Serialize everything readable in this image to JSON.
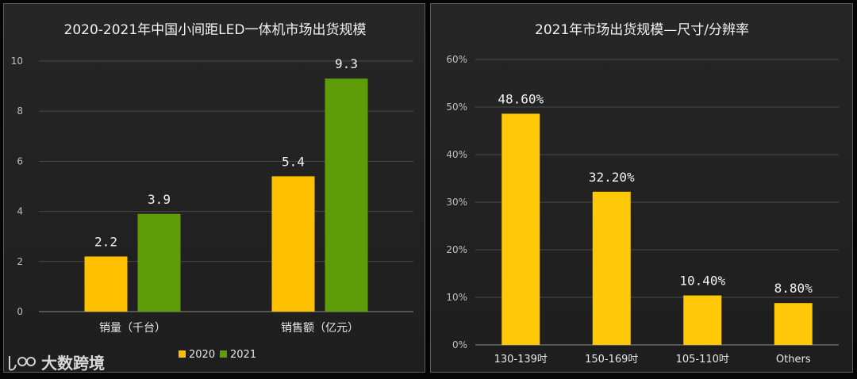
{
  "watermark": {
    "brand_text": "大数跨境"
  },
  "colors": {
    "series_2020": "#FFC000",
    "series_2021": "#5E9C0A",
    "bar_right": "#FFC909"
  },
  "chart_data": [
    {
      "type": "bar",
      "title": "2020-2021年中国小间距LED一体机市场出货规模",
      "categories": [
        "销量（千台）",
        "销售额（亿元）"
      ],
      "series": [
        {
          "name": "2020",
          "values": [
            2.2,
            5.4
          ],
          "labels": [
            "2.2",
            "5.4"
          ]
        },
        {
          "name": "2021",
          "values": [
            3.9,
            9.3
          ],
          "labels": [
            "3.9",
            "9.3"
          ]
        }
      ],
      "ylim": [
        0,
        10
      ],
      "yticks": [
        0,
        2,
        4,
        6,
        8,
        10
      ],
      "ytick_labels": [
        "0",
        "2",
        "4",
        "6",
        "8",
        "10"
      ],
      "grid": true,
      "legend": "bottom"
    },
    {
      "type": "bar",
      "title": "2021年市场出货规模—尺寸/分辨率",
      "categories": [
        "130-139吋",
        "150-169吋",
        "105-110吋",
        "Others"
      ],
      "values": [
        48.6,
        32.2,
        10.4,
        8.8
      ],
      "labels": [
        "48.60%",
        "32.20%",
        "10.40%",
        "8.80%"
      ],
      "ylim": [
        0,
        60
      ],
      "yticks": [
        0,
        10,
        20,
        30,
        40,
        50,
        60
      ],
      "ytick_labels": [
        "0%",
        "10%",
        "20%",
        "30%",
        "40%",
        "50%",
        "60%"
      ],
      "grid": true
    }
  ]
}
